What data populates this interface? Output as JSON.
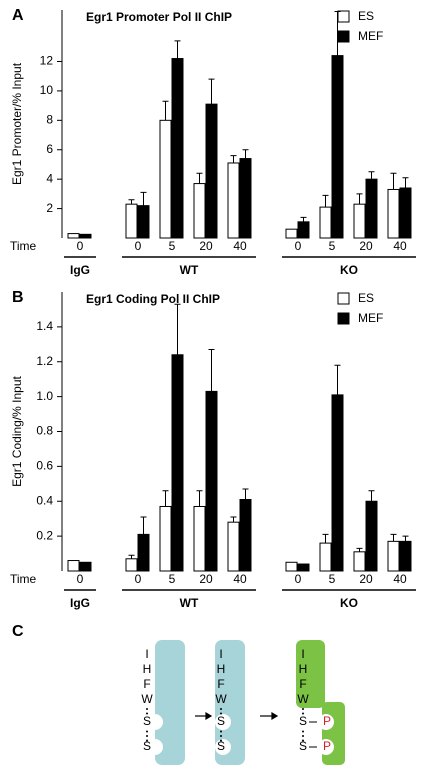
{
  "chart_data": [
    {
      "type": "bar",
      "panel_label": "A",
      "title": "Egr1 Promoter Pol II ChIP",
      "y_label": "Egr1 Promoter/% Input",
      "x_label": "Time",
      "categories": [
        "0",
        "0",
        "5",
        "20",
        "40",
        "0",
        "5",
        "20",
        "40"
      ],
      "groups": [
        {
          "name": "IgG",
          "size": 1
        },
        {
          "name": "WT",
          "size": 4
        },
        {
          "name": "KO",
          "size": 4
        }
      ],
      "series": [
        {
          "name": "ES",
          "color": "#ffffff",
          "values": [
            0.3,
            2.3,
            8.0,
            3.7,
            5.1,
            0.6,
            2.1,
            2.3,
            3.3
          ],
          "errors": [
            null,
            0.3,
            1.3,
            0.7,
            0.5,
            null,
            0.8,
            0.7,
            1.1
          ]
        },
        {
          "name": "MEF",
          "color": "#000000",
          "values": [
            0.25,
            2.2,
            12.2,
            9.1,
            5.4,
            1.1,
            12.4,
            4.0,
            3.4
          ],
          "errors": [
            null,
            0.9,
            1.2,
            1.7,
            0.6,
            0.3,
            3.0,
            0.5,
            0.7
          ]
        }
      ],
      "ylim": [
        0,
        15.5
      ],
      "yticks": [
        2,
        4,
        6,
        8,
        10,
        12
      ],
      "legend": "upper right"
    },
    {
      "type": "bar",
      "panel_label": "B",
      "title": "Egr1 Coding Pol II ChIP",
      "y_label": "Egr1 Coding/% Input",
      "x_label": "Time",
      "categories": [
        "0",
        "0",
        "5",
        "20",
        "40",
        "0",
        "5",
        "20",
        "40"
      ],
      "groups": [
        {
          "name": "IgG",
          "size": 1
        },
        {
          "name": "WT",
          "size": 4
        },
        {
          "name": "KO",
          "size": 4
        }
      ],
      "series": [
        {
          "name": "ES",
          "color": "#ffffff",
          "values": [
            0.06,
            0.07,
            0.37,
            0.37,
            0.28,
            0.05,
            0.16,
            0.11,
            0.17
          ],
          "errors": [
            null,
            0.02,
            0.09,
            0.09,
            0.03,
            null,
            0.05,
            0.02,
            0.04
          ]
        },
        {
          "name": "MEF",
          "color": "#000000",
          "values": [
            0.05,
            0.21,
            1.24,
            1.03,
            0.41,
            0.04,
            1.01,
            0.4,
            0.17
          ],
          "errors": [
            null,
            0.1,
            0.29,
            0.24,
            0.06,
            null,
            0.17,
            0.06,
            0.03
          ]
        }
      ],
      "ylim": [
        0,
        1.6
      ],
      "yticks": [
        0.2,
        0.4,
        0.6,
        0.8,
        {
          "value": 1,
          "label": "1.0"
        },
        1.2,
        1.4
      ],
      "legend": "upper right"
    }
  ],
  "diagram": {
    "panel_label": "C",
    "residues": [
      "I",
      "H",
      "F",
      "W"
    ],
    "site": "S",
    "phospho": "P"
  }
}
